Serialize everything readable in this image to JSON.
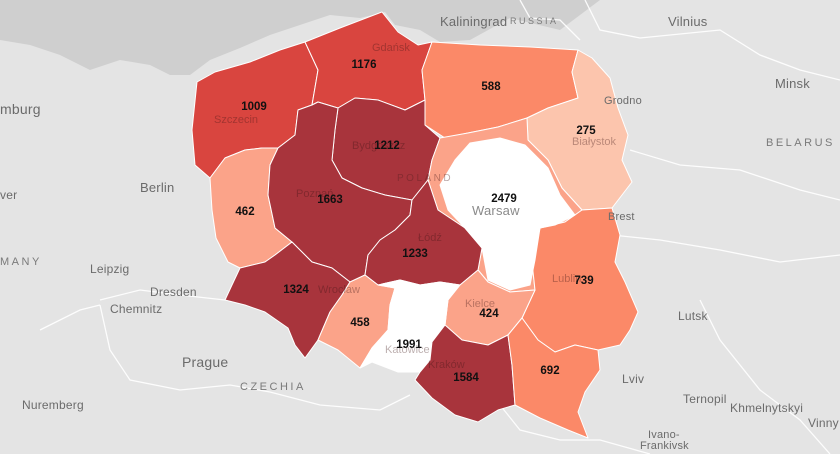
{
  "colors": {
    "land": "#e4e4e4",
    "sea": "#cfcfcf",
    "border": "#ffffff",
    "darkest": "#a8343c",
    "dark": "#d9453f",
    "medium": "#fb8968",
    "light": "#fba389",
    "lightest": "#fcc5ad",
    "capital": "#ffffff"
  },
  "places": {
    "kaliningrad": "Kaliningrad",
    "russia": "RUSSIA",
    "vilnius": "Vilnius",
    "minsk": "Minsk",
    "belarus": "BELARUS",
    "hamburg": "mburg",
    "berlin": "Berlin",
    "hanover": "ver",
    "germany": "MANY",
    "leipzig": "Leipzig",
    "dresden": "Dresden",
    "chemnitz": "Chemnitz",
    "prague": "Prague",
    "czechia": "CZECHIA",
    "nuremberg": "Nuremberg",
    "grodno": "Grodno",
    "brest": "Brest",
    "lutsk": "Lutsk",
    "lviv": "Lviv",
    "ternopil": "Ternopil",
    "khmelnytskyi": "Khmelnytskyi",
    "vinny": "Vinny",
    "ivano": "Ivano-",
    "frankivsk": "Frankivsk",
    "poland": "POLAND",
    "warsaw": "Warsaw",
    "gdansk": "Gdańsk",
    "szczecin": "Szczecin",
    "bialystok": "Białystok",
    "bydgoszcz": "Bydgoszcz",
    "poznan": "Poznań",
    "lodz": "Łódź",
    "lublin": "Lublin",
    "wroclaw": "Wrocław",
    "kielce": "Kielce",
    "katowice": "Katowice",
    "krakow": "Kraków"
  },
  "regions": {
    "zachodniopomorskie": "1009",
    "pomorskie": "1176",
    "warminsko_mazurskie": "588",
    "podlaskie": "275",
    "kujawsko_pomorskie": "1212",
    "lubuskie": "462",
    "wielkopolskie": "1663",
    "mazowieckie": "2479",
    "lodzkie": "1233",
    "lubelskie": "739",
    "dolnoslaskie": "1324",
    "opolskie": "458",
    "swietokrzyskie": "424",
    "slaskie": "1991",
    "malopolskie": "1584",
    "podkarpackie": "692"
  }
}
